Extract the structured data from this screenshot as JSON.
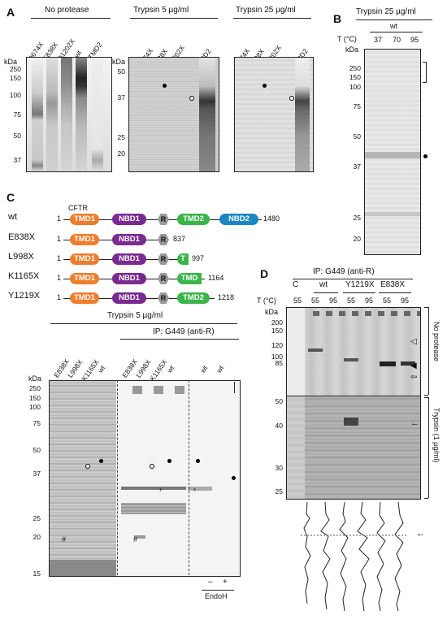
{
  "panels": {
    "A": {
      "label": "A",
      "groups": [
        "No protease",
        "Trypsin 5 µg/ml",
        "Trypsin 25 µg/ml"
      ],
      "lanes_np": [
        "D674X",
        "E838X",
        "D1202X",
        "wt",
        "TMD2"
      ],
      "lanes_t5": [
        "D674X",
        "E838X",
        "D1202X",
        "wt",
        "TMD2"
      ],
      "lanes_t25": [
        "D674X",
        "E838X",
        "D1202X",
        "wt",
        "TMD2"
      ],
      "kda": "kDa",
      "mw_np": [
        "250",
        "150",
        "100",
        "75",
        "50",
        "37"
      ],
      "mw_t5": [
        "50",
        "37",
        "25",
        "20"
      ]
    },
    "B": {
      "label": "B",
      "title": "Trypsin 25 µg/ml",
      "sample": "wt",
      "temp_label": "T (°C)",
      "temps": [
        "37",
        "70",
        "95"
      ],
      "kda": "kDa",
      "mw": [
        "250",
        "150",
        "100",
        "75",
        "50",
        "37",
        "25",
        "20"
      ]
    },
    "C": {
      "label": "C",
      "header": "CFTR",
      "constructs": [
        {
          "name": "wt",
          "start": "1",
          "end": "1480"
        },
        {
          "name": "E838X",
          "start": "1",
          "end": "837"
        },
        {
          "name": "L998X",
          "start": "1",
          "end": "997"
        },
        {
          "name": "K1165X",
          "start": "1",
          "end": "1164"
        },
        {
          "name": "Y1219X",
          "start": "1",
          "end": "1218"
        }
      ],
      "domains": {
        "tmd1": "TMD1",
        "nbd1": "NBD1",
        "r": "R",
        "tmd2": "TMD2",
        "nbd2": "NBD2",
        "tmd2_trunc1": "T",
        "tmd2_trunc2": "TMD"
      },
      "gel_title": "Trypsin 5 µg/ml",
      "ip_title": "IP: G449 (anti-R)",
      "lanes_left": [
        "E838X",
        "L998X",
        "K1165X",
        "wt"
      ],
      "lanes_mid": [
        "E838X",
        "L998X",
        "K1165X",
        "wt"
      ],
      "lanes_right": [
        "wt",
        "wt"
      ],
      "endo_minus": "–",
      "endo_plus": "+",
      "endo_label": "EndoH",
      "kda": "kDa",
      "mw": [
        "250",
        "150",
        "100",
        "75",
        "50",
        "37",
        "25",
        "20",
        "15"
      ],
      "hash": "#"
    },
    "D": {
      "label": "D",
      "ip_title": "IP: G449 (anti-R)",
      "groups": [
        "C",
        "wt",
        "Y1219X",
        "E838X"
      ],
      "temp_label": "T (°C)",
      "temps": [
        "55",
        "55",
        "95",
        "55",
        "95",
        "55",
        "95"
      ],
      "kda": "kDa",
      "mw_top": [
        "200",
        "150",
        "120",
        "100",
        "85"
      ],
      "mw_bot": [
        "50",
        "40",
        "30",
        "25"
      ],
      "side_top": "No protease",
      "side_bot": "Trypsin (1 µg/ml)"
    }
  }
}
